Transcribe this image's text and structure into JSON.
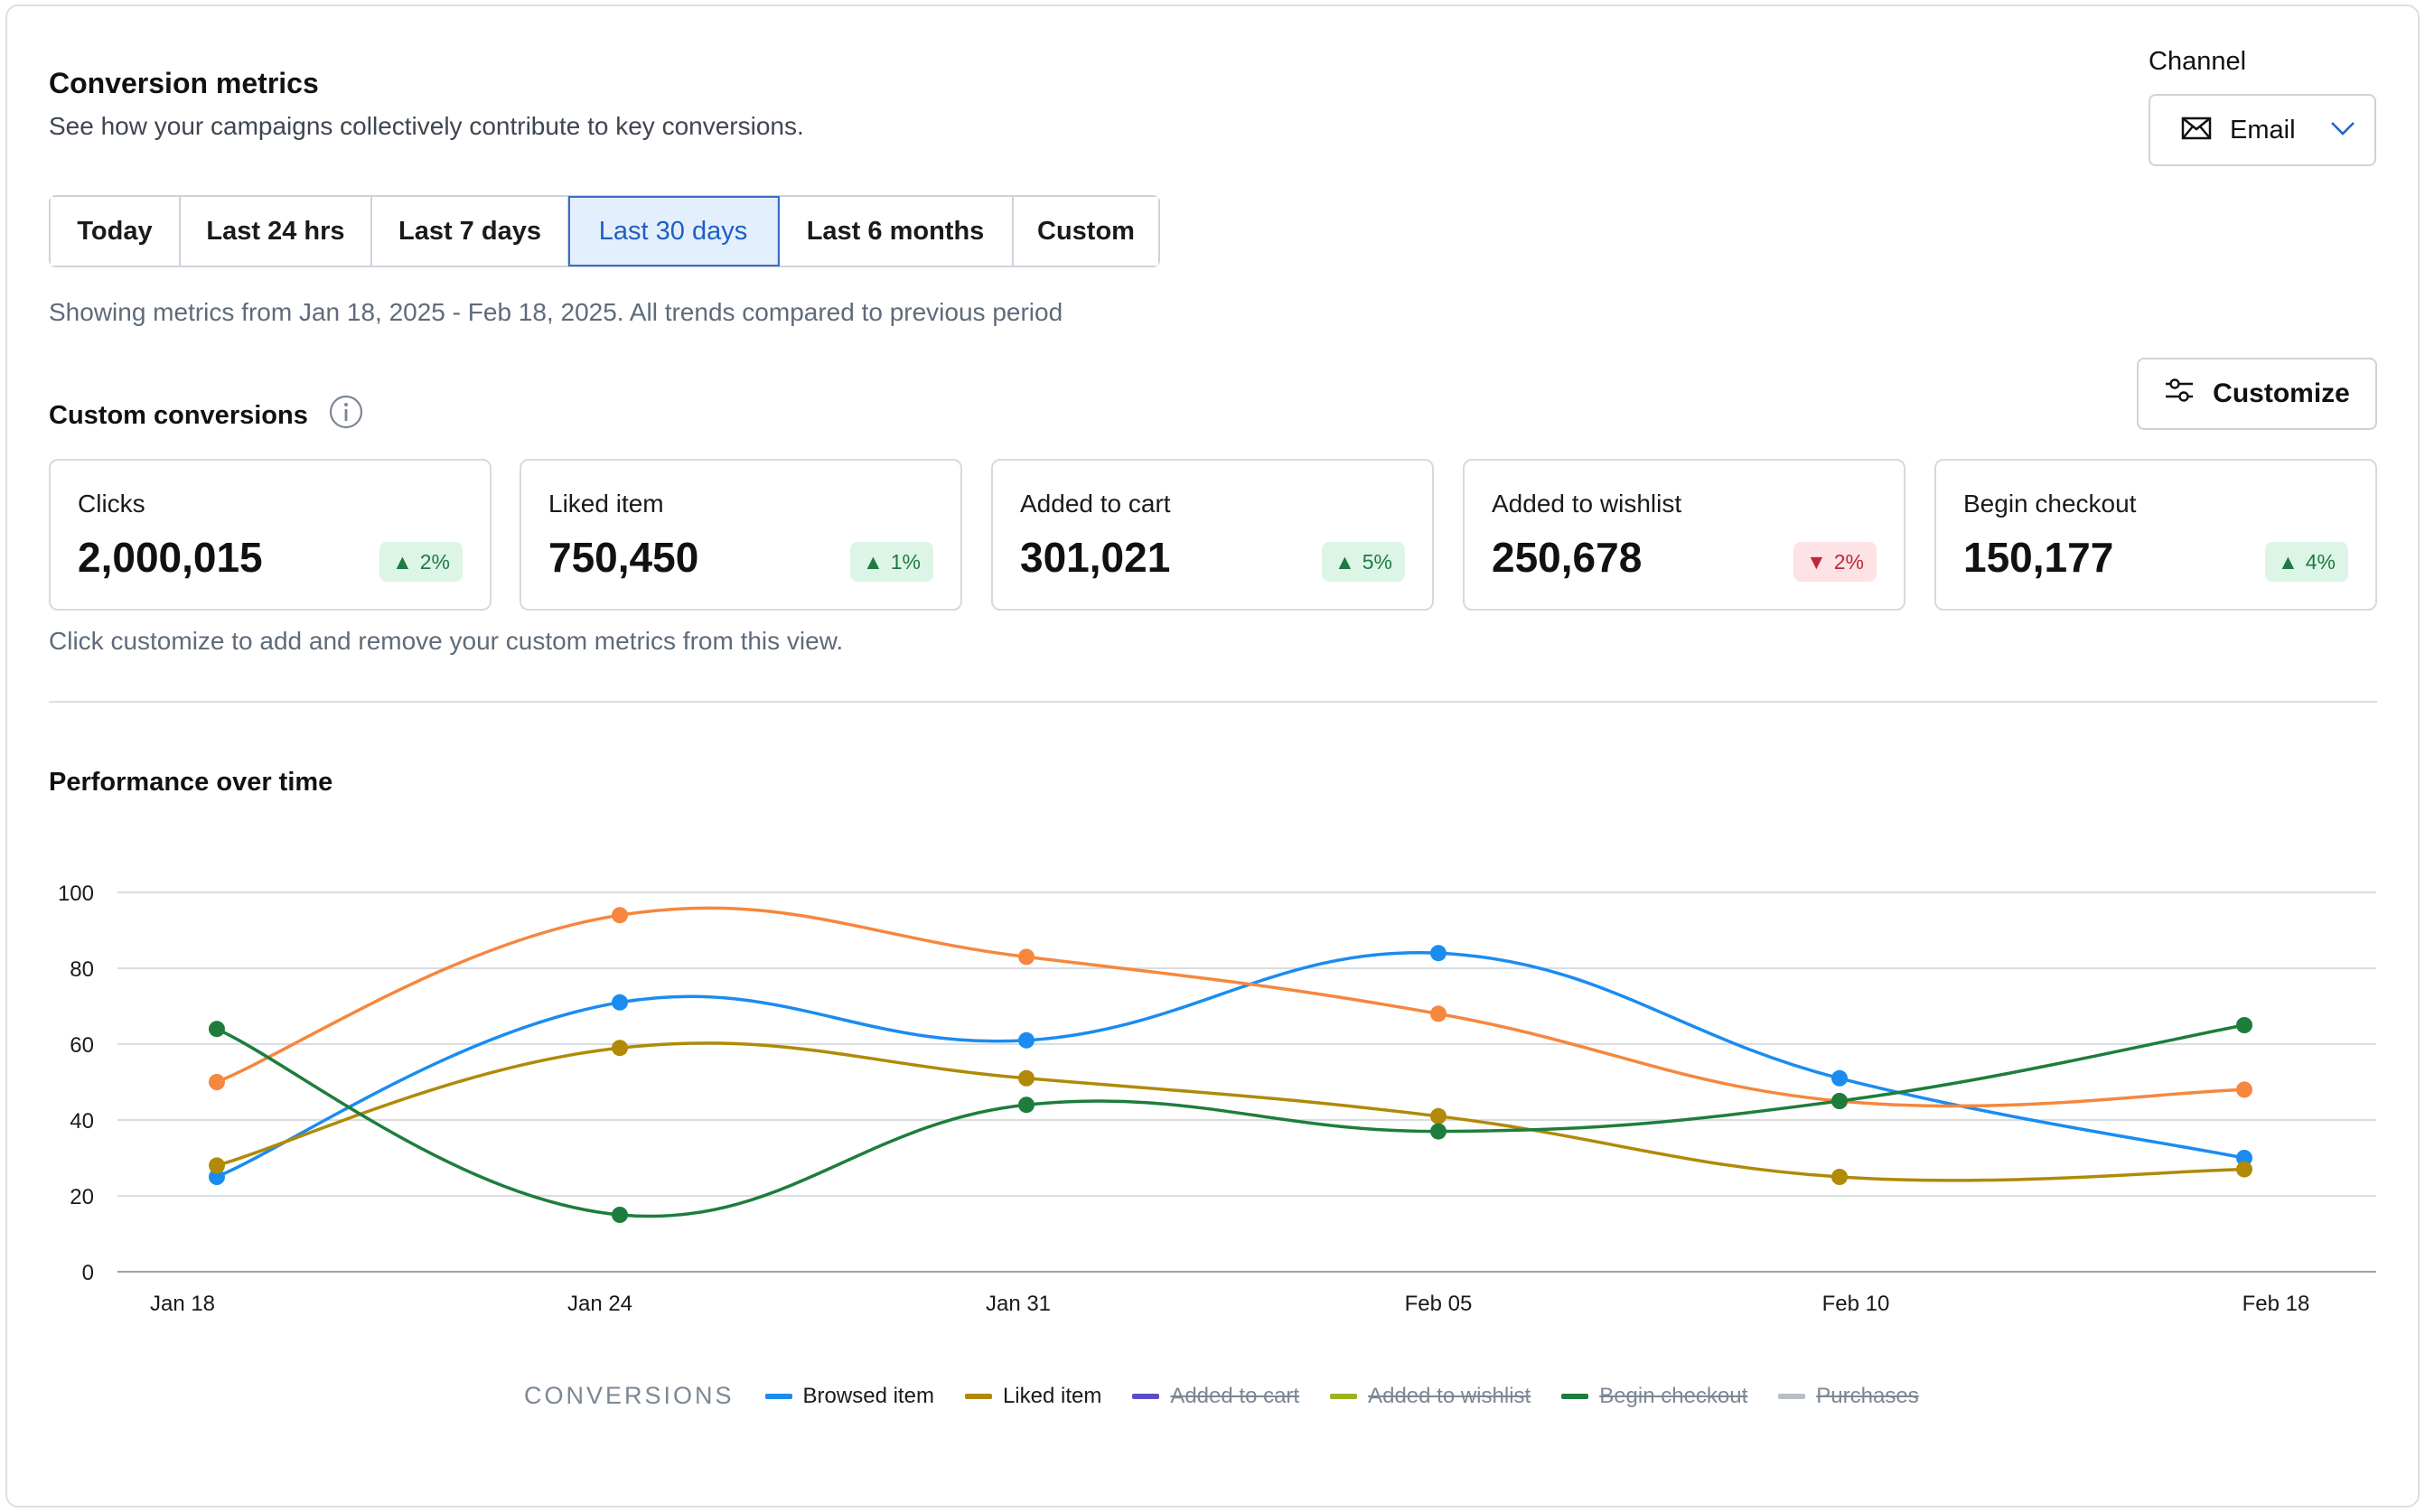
{
  "header": {
    "title": "Conversion metrics",
    "subtitle": "See how your campaigns collectively contribute to key conversions."
  },
  "channel": {
    "label": "Channel",
    "value": "Email",
    "icon": "envelope-icon"
  },
  "ranges": [
    {
      "label": "Today",
      "active": false
    },
    {
      "label": "Last 24 hrs",
      "active": false
    },
    {
      "label": "Last 7 days",
      "active": false
    },
    {
      "label": "Last 30 days",
      "active": true
    },
    {
      "label": "Last 6 months",
      "active": false
    },
    {
      "label": "Custom",
      "active": false
    }
  ],
  "range_note": "Showing metrics from Jan 18, 2025 - Feb 18, 2025. All trends compared to previous period",
  "custom_conversions": {
    "label": "Custom conversions",
    "customize_label": "Customize",
    "note": "Click customize to add and remove your custom metrics from this view.",
    "cards": [
      {
        "label": "Clicks",
        "value": "2,000,015",
        "trend": "2%",
        "direction": "up"
      },
      {
        "label": "Liked item",
        "value": "750,450",
        "trend": "1%",
        "direction": "up"
      },
      {
        "label": "Added to cart",
        "value": "301,021",
        "trend": "5%",
        "direction": "up"
      },
      {
        "label": "Added to wishlist",
        "value": "250,678",
        "trend": "2%",
        "direction": "down"
      },
      {
        "label": "Begin checkout",
        "value": "150,177",
        "trend": "4%",
        "direction": "up"
      }
    ]
  },
  "performance": {
    "title": "Performance over time"
  },
  "chart_data": {
    "type": "line",
    "x": [
      "Jan 18",
      "Jan 24",
      "Jan 31",
      "Feb 05",
      "Feb 10",
      "Feb 18"
    ],
    "ylim": [
      0,
      100
    ],
    "yticks": [
      0,
      20,
      40,
      60,
      80,
      100
    ],
    "grid": true,
    "series": [
      {
        "name": "Browsed item",
        "color": "#1a8cf0",
        "values": [
          25,
          71,
          61,
          84,
          51,
          30
        ]
      },
      {
        "color": "#f5873e",
        "values": [
          50,
          94,
          83,
          68,
          45,
          48
        ]
      },
      {
        "name": "Liked item",
        "color": "#b08a08",
        "values": [
          28,
          59,
          51,
          41,
          25,
          27
        ]
      },
      {
        "name": "Begin checkout",
        "color": "#1e7d3c",
        "values": [
          64,
          15,
          44,
          37,
          45,
          65
        ]
      }
    ],
    "legend": {
      "title": "CONVERSIONS",
      "placement": "bottom",
      "items": [
        {
          "name": "Browsed item",
          "color": "#1a8cf0",
          "enabled": true
        },
        {
          "name": "Liked item",
          "color": "#b08a08",
          "enabled": true
        },
        {
          "name": "Added to cart",
          "color": "#5b4fc9",
          "enabled": false
        },
        {
          "name": "Added to wishlist",
          "color": "#9ab51f",
          "enabled": false
        },
        {
          "name": "Begin checkout",
          "color": "#1e7d3c",
          "enabled": false
        },
        {
          "name": "Purchases",
          "color": "#b9bec4",
          "enabled": false
        }
      ]
    }
  }
}
